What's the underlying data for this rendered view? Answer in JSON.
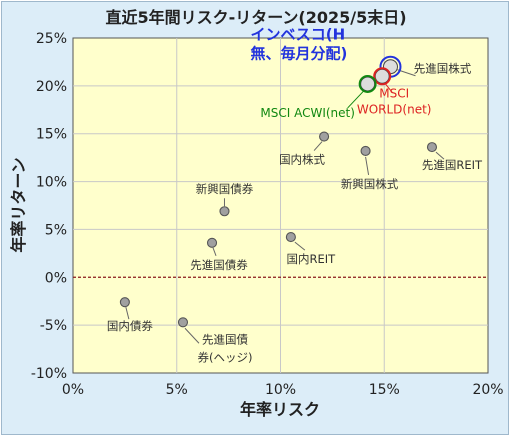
{
  "chart_data": {
    "type": "scatter",
    "title": "直近5年間リスク-リターン(2025/5末日)",
    "xlabel": "年率リスク",
    "ylabel": "年率リターン",
    "xlim": [
      0,
      20
    ],
    "ylim": [
      -10,
      25
    ],
    "x_ticks": [
      "0%",
      "5%",
      "10%",
      "15%",
      "20%"
    ],
    "y_ticks": [
      "25%",
      "20%",
      "15%",
      "10%",
      "5%",
      "0%",
      "-5%",
      "-10%"
    ],
    "grid": true,
    "zero_line": "dashed",
    "points": [
      {
        "label": [
          "インベスコ(H",
          "無、毎月分配)"
        ],
        "x": 15.3,
        "y": 22.0,
        "color": "#2233dd",
        "highlight": "circle"
      },
      {
        "label": [
          "MSCI",
          "WORLD(net)"
        ],
        "x": 14.9,
        "y": 21.0,
        "color": "#dd2222",
        "highlight": "circle"
      },
      {
        "label": [
          "MSCI ACWI(net)"
        ],
        "x": 14.2,
        "y": 20.2,
        "color": "#118811",
        "highlight": "circle"
      },
      {
        "label": [
          "先進国株式"
        ],
        "x": 15.3,
        "y": 22.0,
        "color": "#999999"
      },
      {
        "label": [
          "国内株式"
        ],
        "x": 12.1,
        "y": 14.7,
        "color": "#999999"
      },
      {
        "label": [
          "新興国株式"
        ],
        "x": 14.1,
        "y": 13.2,
        "color": "#999999"
      },
      {
        "label": [
          "先進国REIT"
        ],
        "x": 17.3,
        "y": 13.6,
        "color": "#999999"
      },
      {
        "label": [
          "新興国債券"
        ],
        "x": 7.3,
        "y": 6.9,
        "color": "#999999"
      },
      {
        "label": [
          "先進国債券"
        ],
        "x": 6.7,
        "y": 3.6,
        "color": "#999999"
      },
      {
        "label": [
          "国内REIT"
        ],
        "x": 10.5,
        "y": 4.2,
        "color": "#999999"
      },
      {
        "label": [
          "国内債券"
        ],
        "x": 2.5,
        "y": -2.6,
        "color": "#999999"
      },
      {
        "label": [
          "先進国債",
          "券(ヘッジ)"
        ],
        "x": 5.3,
        "y": -4.7,
        "color": "#999999"
      }
    ]
  }
}
